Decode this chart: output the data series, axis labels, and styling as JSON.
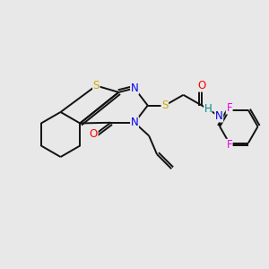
{
  "background_color": "#e8e8e8",
  "atom_colors": {
    "N": "#0000ee",
    "O": "#ff0000",
    "S_thio": "#ccaa00",
    "S_ether": "#ccaa00",
    "F": "#ee00ee",
    "H": "#008888"
  },
  "bond_color": "#111111",
  "bond_width": 1.4,
  "font_size": 8.5
}
